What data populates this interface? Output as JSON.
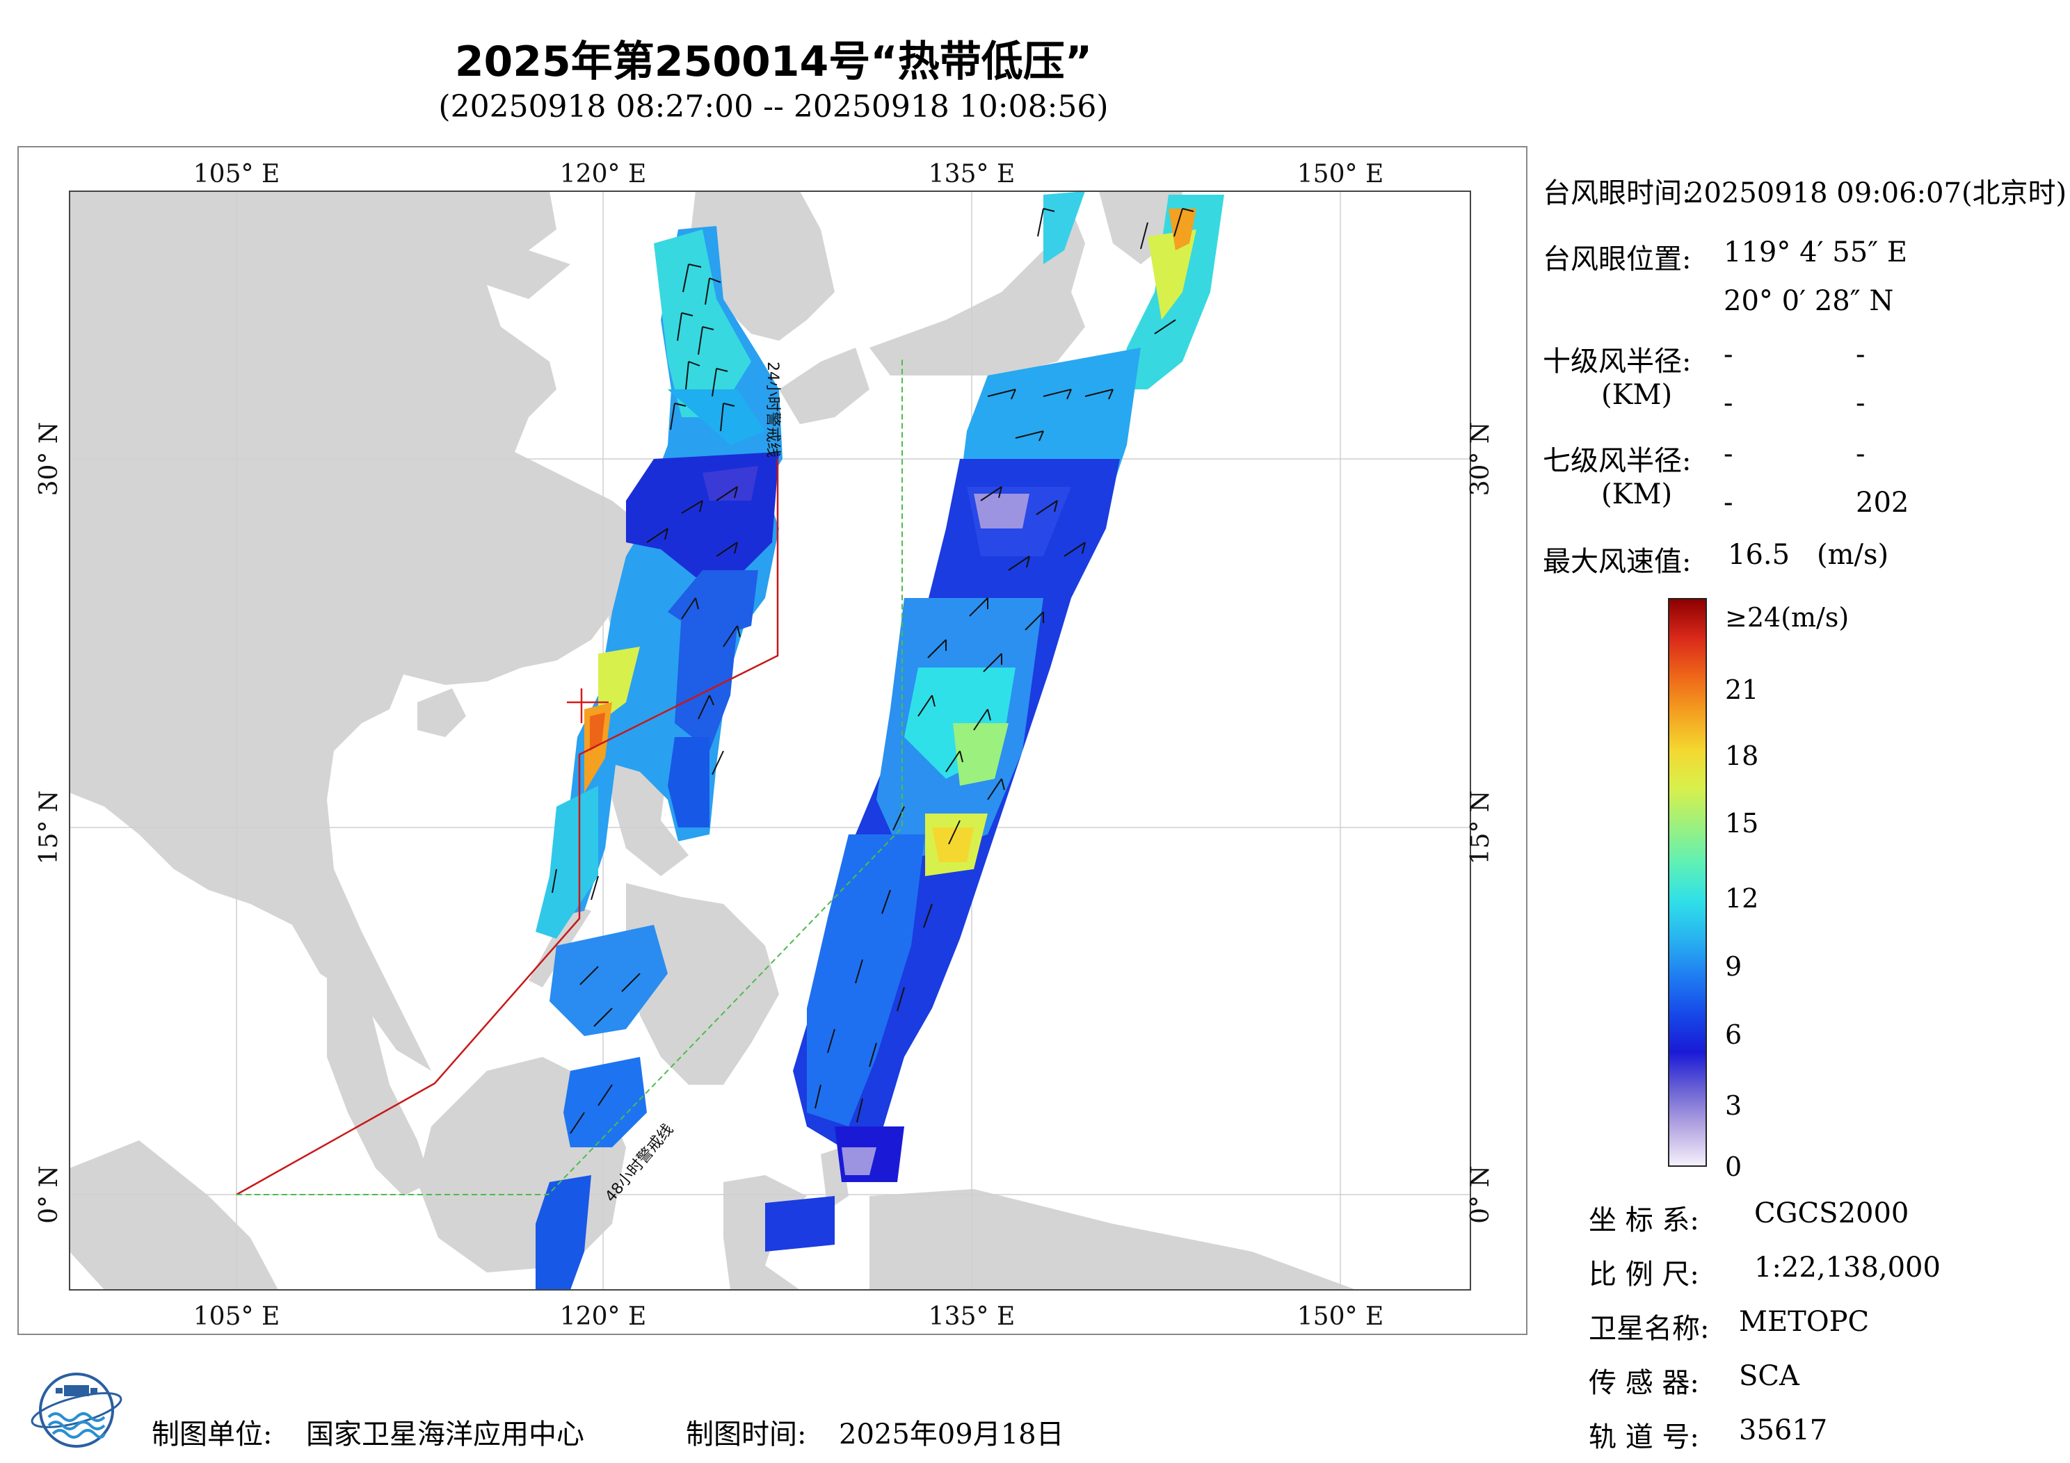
{
  "title": "2025年第250014号“热带低压”",
  "subtitle": "(20250918 08:27:00 -- 20250918 10:08:56)",
  "map": {
    "lon_labels": [
      "105° E",
      "120° E",
      "135° E",
      "150° E"
    ],
    "lat_labels": [
      "30° N",
      "15° N",
      "0° N"
    ],
    "warning_24h": "24小时警戒线",
    "warning_48h": "48小时警戒线"
  },
  "info": {
    "eye_time_label": "台风眼时间:",
    "eye_time_value": "20250918 09:06:07(北京时)",
    "eye_pos_label": "台风眼位置:",
    "eye_lon": "119° 4′ 55″ E",
    "eye_lat": "20° 0′ 28″ N",
    "r10_label": "十级风半径:",
    "r10_unit": "(KM)",
    "r10_values": [
      "-",
      "-",
      "-",
      "-"
    ],
    "r7_label": "七级风半径:",
    "r7_unit": "(KM)",
    "r7_values": [
      "-",
      "-",
      "-",
      "202"
    ],
    "max_wind_label": "最大风速值:",
    "max_wind_value": "16.5",
    "max_wind_unit": "(m/s)"
  },
  "colorbar": {
    "top_label": "≥24(m/s)",
    "ticks": [
      "21",
      "18",
      "15",
      "12",
      "9",
      "6",
      "3",
      "0"
    ],
    "colors": [
      "#f4f0fb",
      "#b7a8e2",
      "#6b63d4",
      "#1a1ad6",
      "#1648e8",
      "#1f7cf2",
      "#28b2f0",
      "#2fe0e8",
      "#5ef0b6",
      "#9cf07e",
      "#d8f04c",
      "#f4d830",
      "#f4a020",
      "#ee6418",
      "#d8281a",
      "#8c0000"
    ]
  },
  "meta": {
    "coord_label": "坐 标 系:",
    "coord_value": "CGCS2000",
    "scale_label": "比 例 尺:",
    "scale_value": "1:22,138,000",
    "satellite_label": "卫星名称:",
    "satellite_value": "METOPC",
    "sensor_label": "传 感 器:",
    "sensor_value": "SCA",
    "orbit_label": "轨 道 号:",
    "orbit_value": "35617"
  },
  "footer": {
    "producer_label": "制图单位:",
    "producer_value": "国家卫星海洋应用中心",
    "date_label": "制图时间:",
    "date_value": "2025年09月18日"
  }
}
